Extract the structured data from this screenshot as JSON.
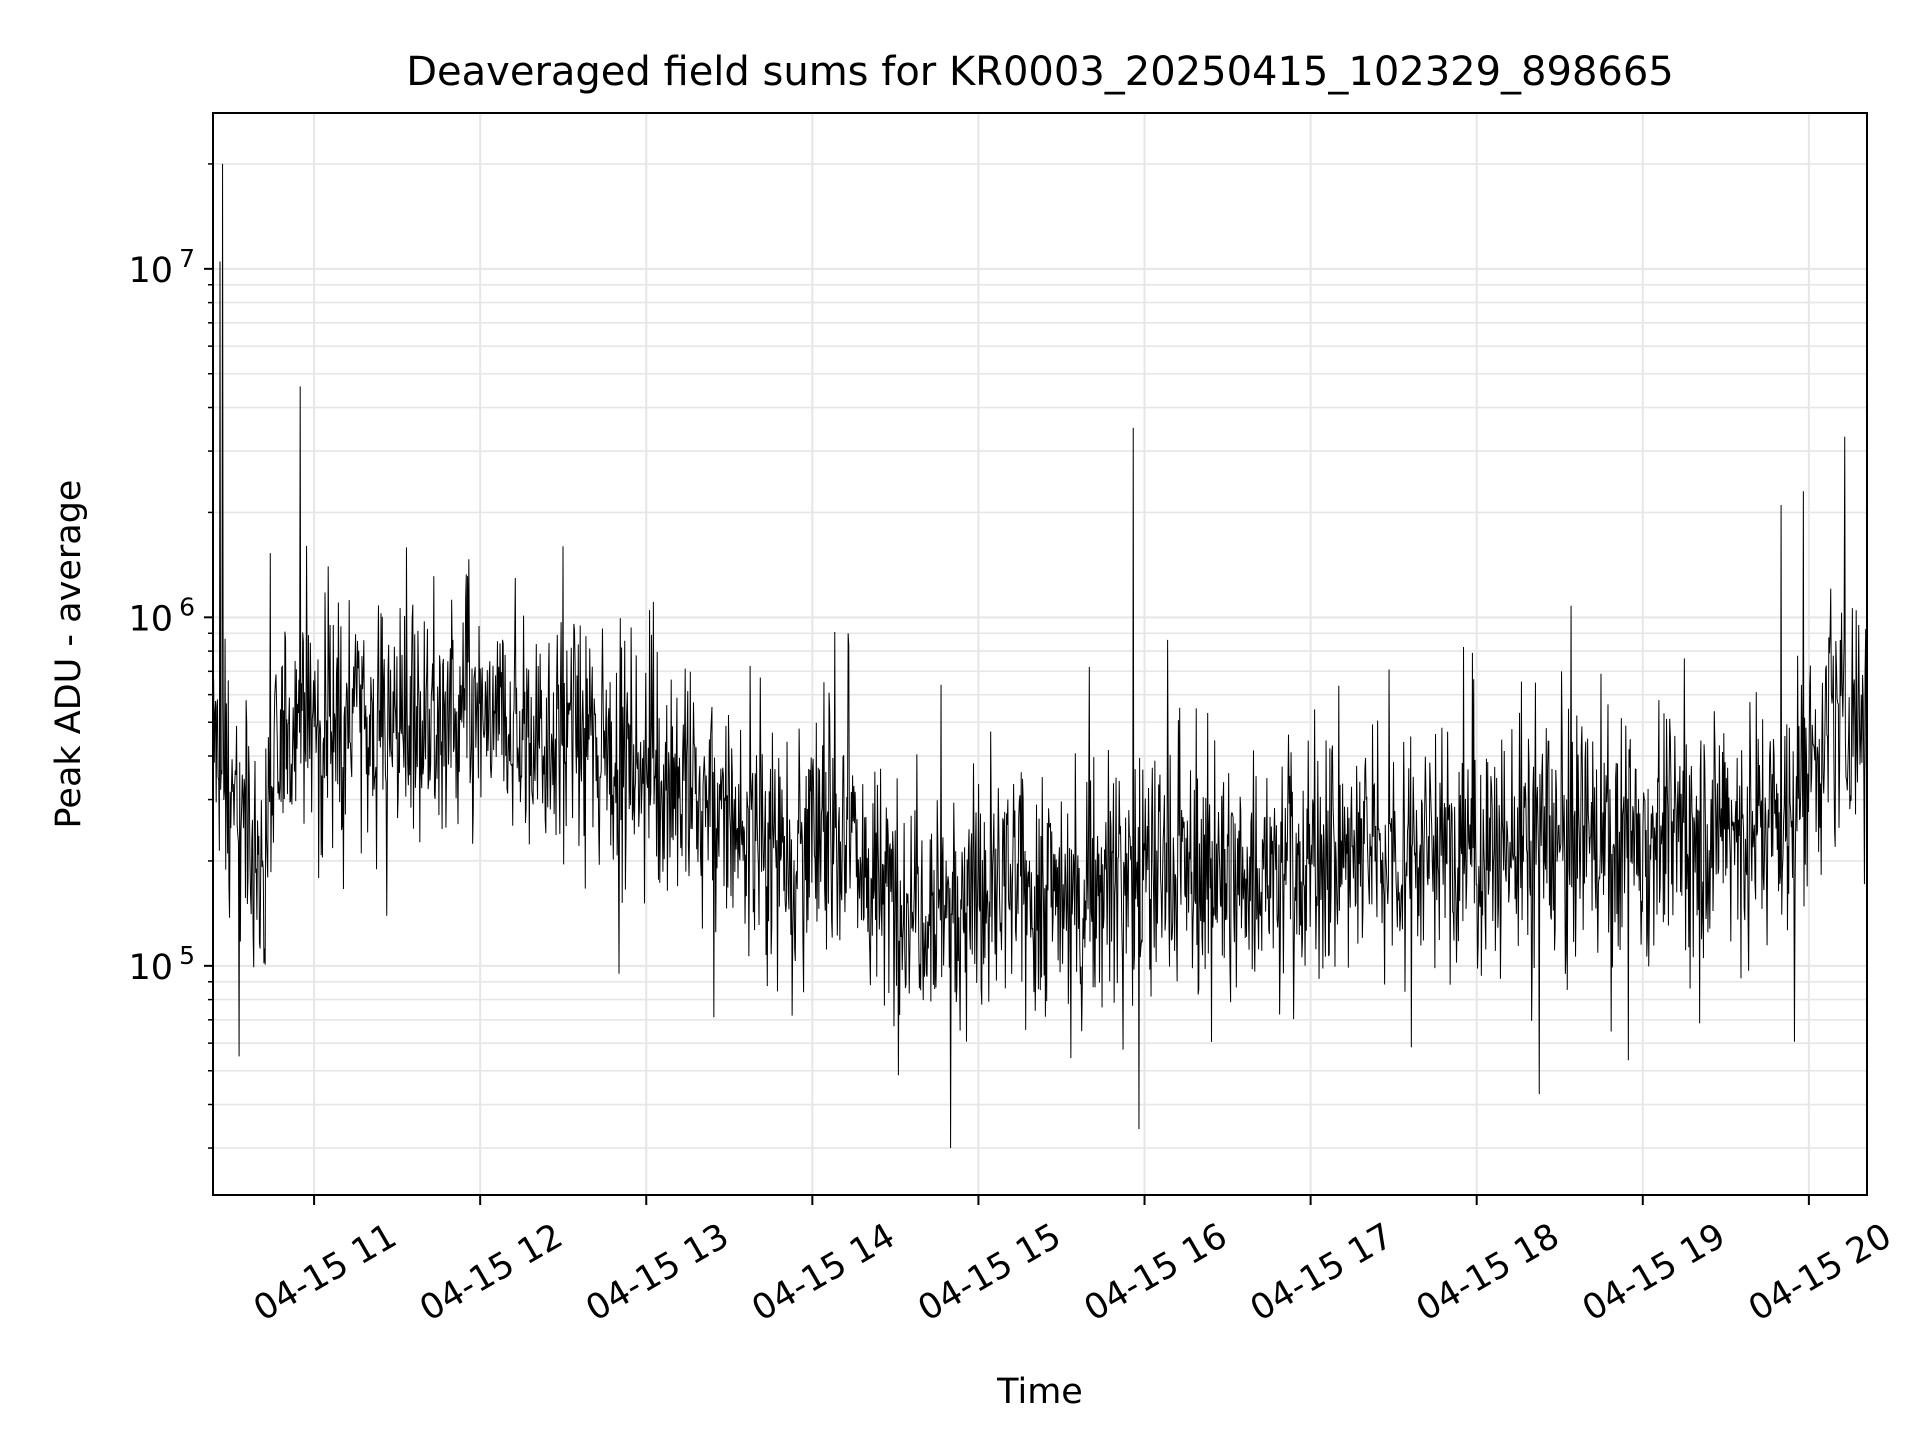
{
  "chart_data": {
    "type": "line",
    "title": "Deaveraged field sums for KR0003_20250415_102329_898665",
    "xlabel": "Time",
    "ylabel": "Peak ADU - average",
    "yscale": "log",
    "ylim": [
      22000,
      28000000
    ],
    "xlim": [
      "2025-04-15T10:23:29",
      "2025-04-15T20:21:00"
    ],
    "x_ticks": [
      {
        "at": "2025-04-15T11:00",
        "label": "04-15 11"
      },
      {
        "at": "2025-04-15T12:00",
        "label": "04-15 12"
      },
      {
        "at": "2025-04-15T13:00",
        "label": "04-15 13"
      },
      {
        "at": "2025-04-15T14:00",
        "label": "04-15 14"
      },
      {
        "at": "2025-04-15T15:00",
        "label": "04-15 15"
      },
      {
        "at": "2025-04-15T16:00",
        "label": "04-15 16"
      },
      {
        "at": "2025-04-15T17:00",
        "label": "04-15 17"
      },
      {
        "at": "2025-04-15T18:00",
        "label": "04-15 18"
      },
      {
        "at": "2025-04-15T19:00",
        "label": "04-15 19"
      },
      {
        "at": "2025-04-15T20:00",
        "label": "04-15 20"
      }
    ],
    "y_ticks": [
      {
        "value": 100000,
        "base": "10",
        "exp": "5"
      },
      {
        "value": 1000000,
        "base": "10",
        "exp": "6"
      },
      {
        "value": 10000000,
        "base": "10",
        "exp": "7"
      }
    ],
    "grid": true,
    "series": [
      {
        "color": "#000000",
        "line_width": 1,
        "notes_visible_baseline": [
          [
            "2025-04-15T10:23:29",
            450000
          ],
          [
            "2025-04-15T10:40:00",
            180000
          ],
          [
            "2025-04-15T10:50:00",
            500000
          ],
          [
            "2025-04-15T11:30:00",
            520000
          ],
          [
            "2025-04-15T12:30:00",
            470000
          ],
          [
            "2025-04-15T13:00:00",
            380000
          ],
          [
            "2025-04-15T13:30:00",
            250000
          ],
          [
            "2025-04-15T14:00:00",
            220000
          ],
          [
            "2025-04-15T14:15:00",
            260000
          ],
          [
            "2025-04-15T14:20:00",
            160000
          ],
          [
            "2025-04-15T15:00:00",
            160000
          ],
          [
            "2025-04-15T15:30:00",
            170000
          ],
          [
            "2025-04-15T16:00:00",
            190000
          ],
          [
            "2025-04-15T16:30:00",
            180000
          ],
          [
            "2025-04-15T17:00:00",
            200000
          ],
          [
            "2025-04-15T17:30:00",
            220000
          ],
          [
            "2025-04-15T18:00:00",
            210000
          ],
          [
            "2025-04-15T18:30:00",
            230000
          ],
          [
            "2025-04-15T19:00:00",
            240000
          ],
          [
            "2025-04-15T19:30:00",
            250000
          ],
          [
            "2025-04-15T19:55:00",
            280000
          ],
          [
            "2025-04-15T20:00:00",
            420000
          ],
          [
            "2025-04-15T20:21:00",
            600000
          ]
        ],
        "spikes": [
          [
            "2025-04-15T10:27:00",
            20000000
          ],
          [
            "2025-04-15T10:26:00",
            10500000
          ],
          [
            "2025-04-15T10:55:00",
            4600000
          ],
          [
            "2025-04-15T15:56:00",
            3500000
          ],
          [
            "2025-04-15T20:13:00",
            3300000
          ],
          [
            "2025-04-15T19:58:00",
            2300000
          ],
          [
            "2025-04-15T19:50:00",
            2100000
          ],
          [
            "2025-04-15T15:40:00",
            720000
          ],
          [
            "2025-04-15T12:30:00",
            1600000
          ],
          [
            "2025-04-15T11:05:00",
            1400000
          ],
          [
            "2025-04-15T14:13:00",
            900000
          ],
          [
            "2025-04-15T14:50:00",
            30000
          ],
          [
            "2025-04-15T15:58:00",
            34000
          ],
          [
            "2025-04-15T10:33:00",
            55000
          ]
        ]
      }
    ]
  }
}
